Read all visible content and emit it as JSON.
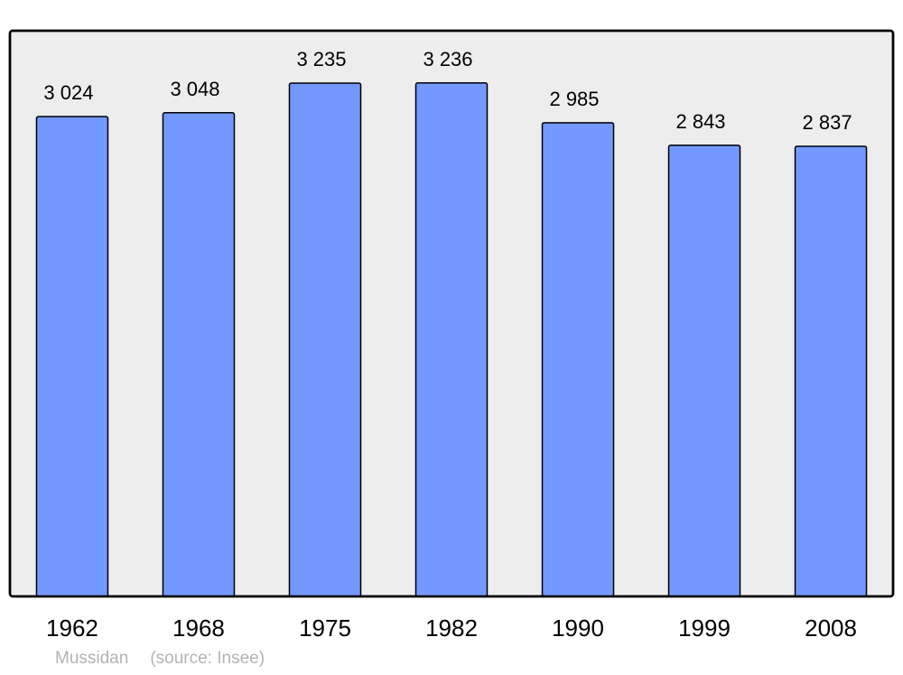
{
  "chart_data": {
    "type": "bar",
    "categories": [
      "1962",
      "1968",
      "1975",
      "1982",
      "1990",
      "1999",
      "2008"
    ],
    "values": [
      3024,
      3048,
      3235,
      3236,
      2985,
      2843,
      2837
    ],
    "data_labels": [
      "3 024",
      "3 048",
      "3 235",
      "3 236",
      "2 985",
      "2 843",
      "2 837"
    ],
    "title": "",
    "xlabel": "",
    "ylabel": "",
    "ylim": [
      0,
      3565
    ],
    "grid": false,
    "colors": {
      "bar": "#7399ff",
      "background": "#ededed",
      "border": "#000000"
    }
  },
  "caption": {
    "place": "Mussidan",
    "source": "(source: Insee)"
  }
}
